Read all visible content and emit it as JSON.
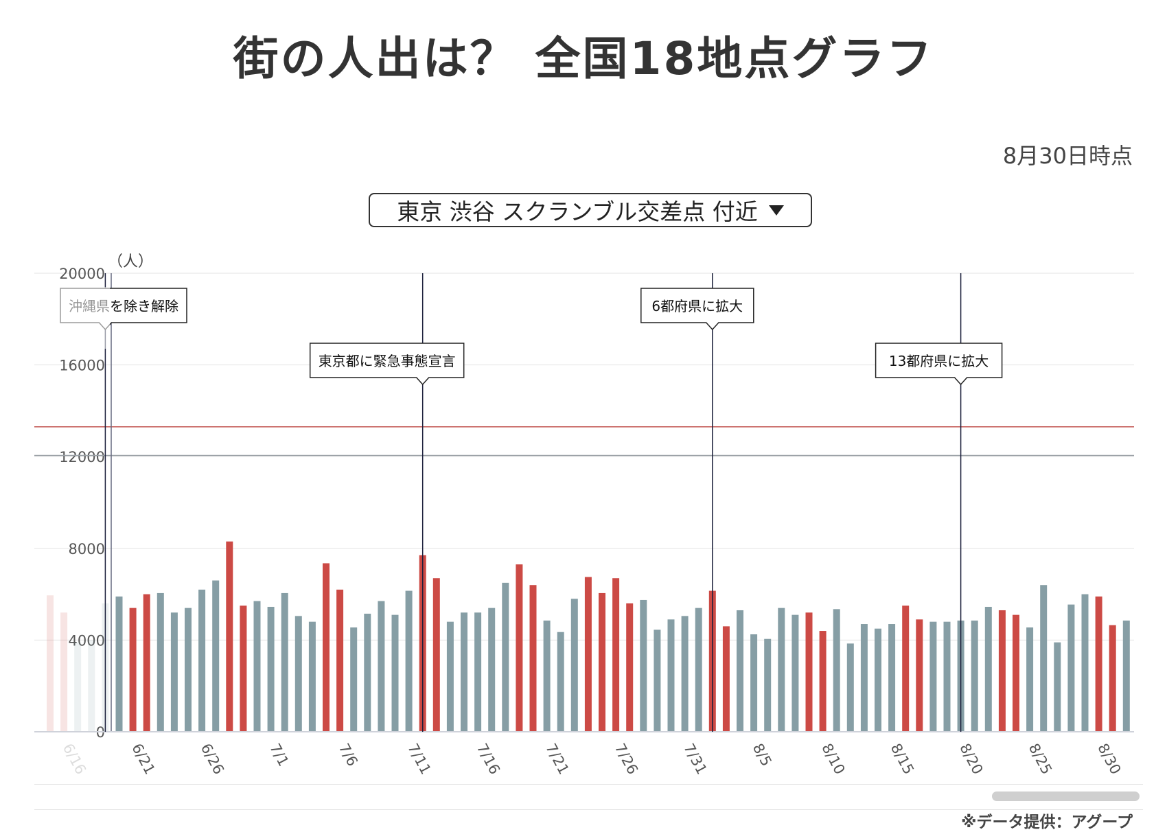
{
  "title": "街の人出は？ 全国18地点グラフ",
  "as_of": "8月30日時点",
  "location_select": {
    "value": "東京 渋谷 スクランブル交差点 付近"
  },
  "source": "※データ提供：アグープ",
  "colors": {
    "weekday": "#869ea5",
    "weekend": "#cc4a45",
    "baseline_red": "#c0504d",
    "baseline_gray": "#9aa0a6",
    "event_line": "#1b1f3b"
  },
  "chart_data": {
    "type": "bar",
    "ylabel": "（人）",
    "ylim": [
      0,
      20000
    ],
    "yticks": [
      0,
      4000,
      8000,
      12000,
      16000,
      20000
    ],
    "grid": true,
    "series_legend": [
      "weekday",
      "weekend/holiday"
    ],
    "x_start": "6/15",
    "x_end": "8/30",
    "xtick_labels": [
      "6/16",
      "6/21",
      "6/26",
      "7/1",
      "7/6",
      "7/11",
      "7/16",
      "7/21",
      "7/26",
      "7/31",
      "8/5",
      "8/10",
      "8/15",
      "8/20",
      "8/25",
      "8/30"
    ],
    "values": [
      5950,
      5200,
      3900,
      4000,
      5600,
      5900,
      5400,
      6000,
      6050,
      5200,
      5400,
      6200,
      6600,
      8300,
      5500,
      5700,
      5450,
      6050,
      5050,
      4800,
      7350,
      6200,
      4550,
      5150,
      5700,
      5100,
      6150,
      7700,
      6700,
      4800,
      5200,
      5200,
      5400,
      6500,
      7300,
      6400,
      4850,
      4350,
      5800,
      6750,
      6050,
      6700,
      5600,
      5750,
      4450,
      4900,
      5050,
      5400,
      6150,
      4600,
      5300,
      4250,
      4050,
      5400,
      5100,
      5200,
      4400,
      5350,
      3850,
      4700,
      4500,
      4700,
      5500,
      4900,
      4800,
      4800,
      4850,
      4850,
      5450,
      5300,
      5100,
      4550,
      6400,
      3900,
      5550,
      6000,
      5900,
      4650,
      4850
    ],
    "weekend_flags": [
      1,
      1,
      0,
      0,
      0,
      0,
      1,
      1,
      0,
      0,
      0,
      0,
      0,
      1,
      1,
      0,
      0,
      0,
      0,
      0,
      1,
      1,
      0,
      0,
      0,
      0,
      0,
      1,
      1,
      0,
      0,
      0,
      0,
      0,
      1,
      1,
      0,
      0,
      0,
      1,
      1,
      1,
      1,
      0,
      0,
      0,
      0,
      0,
      1,
      1,
      0,
      0,
      0,
      0,
      0,
      1,
      1,
      0,
      0,
      0,
      0,
      0,
      1,
      1,
      0,
      0,
      0,
      0,
      0,
      1,
      1,
      0,
      0,
      0,
      0,
      0,
      1,
      1,
      0
    ],
    "reference_lines": [
      {
        "value": 13300,
        "color": "baseline_red"
      },
      {
        "value": 12050,
        "color": "baseline_gray"
      }
    ],
    "events": [
      {
        "date": "6/19",
        "label": "沖縄県を除き解除"
      },
      {
        "date": "7/12",
        "label": "東京都に緊急事態宣言"
      },
      {
        "date": "8/2",
        "label": "6都府県に拡大"
      },
      {
        "date": "8/20",
        "label": "13都府県に拡大"
      }
    ]
  }
}
